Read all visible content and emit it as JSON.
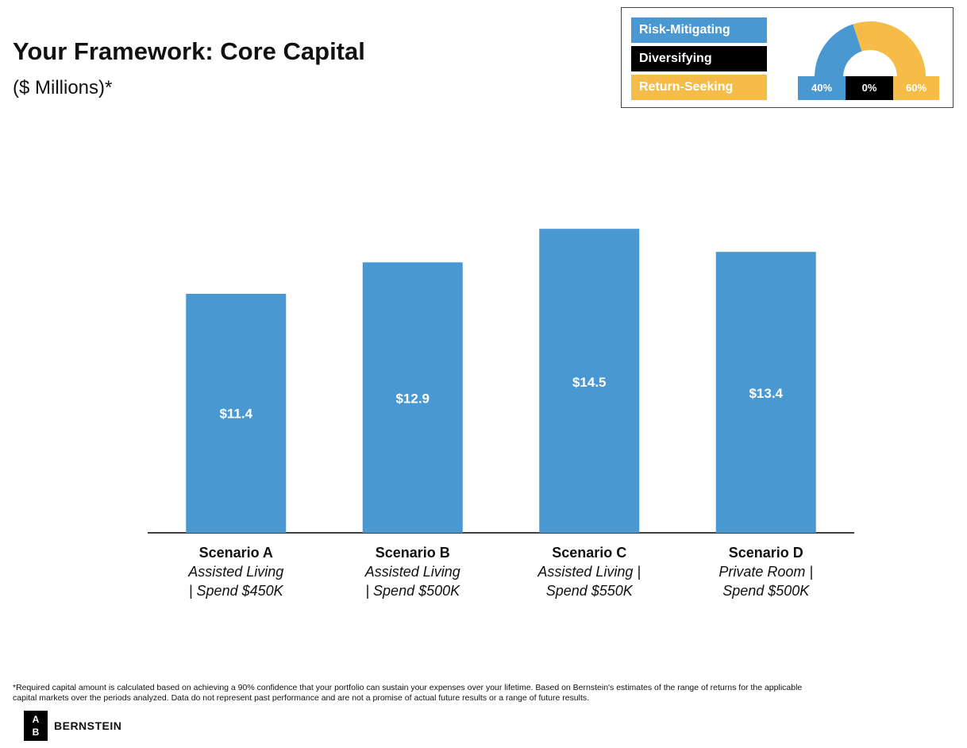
{
  "header": {
    "title": "Your Framework: Core Capital",
    "subtitle": "($ Millions)*"
  },
  "legend": {
    "items": [
      {
        "label": "Risk-Mitigating",
        "color": "#4a98d2",
        "percent": "40%",
        "share": 0.4
      },
      {
        "label": "Diversifying",
        "color": "#000000",
        "percent": "0%",
        "share": 0.0
      },
      {
        "label": "Return-Seeking",
        "color": "#f5bd48",
        "percent": "60%",
        "share": 0.6
      }
    ]
  },
  "chart_data": {
    "type": "bar",
    "title": "Your Framework: Core Capital",
    "ylabel": "",
    "xlabel": "",
    "ylim": [
      0,
      16
    ],
    "bar_color": "#4a98d2",
    "categories": [
      {
        "name": "Scenario A",
        "line1": "Assisted Living",
        "line2": "| Spend $450K"
      },
      {
        "name": "Scenario B",
        "line1": "Assisted Living",
        "line2": "| Spend $500K"
      },
      {
        "name": "Scenario C",
        "line1": "Assisted Living |",
        "line2": "Spend $550K"
      },
      {
        "name": "Scenario D",
        "line1": "Private Room |",
        "line2": "Spend $500K"
      }
    ],
    "values": [
      11.4,
      12.9,
      14.5,
      13.4
    ],
    "value_labels": [
      "$11.4",
      "$12.9",
      "$14.5",
      "$13.4"
    ]
  },
  "footnote": {
    "line1": "*Required capital amount is calculated based on achieving a 90% confidence that your portfolio can sustain your expenses over your lifetime. Based on Bernstein's estimates of the range of returns for the applicable",
    "line2": "capital markets over the periods analyzed. Data do not represent past performance and are not a promise of actual future results or a range of future results."
  },
  "brand": {
    "logo_top": "A",
    "logo_bottom": "B",
    "name": "BERNSTEIN"
  }
}
